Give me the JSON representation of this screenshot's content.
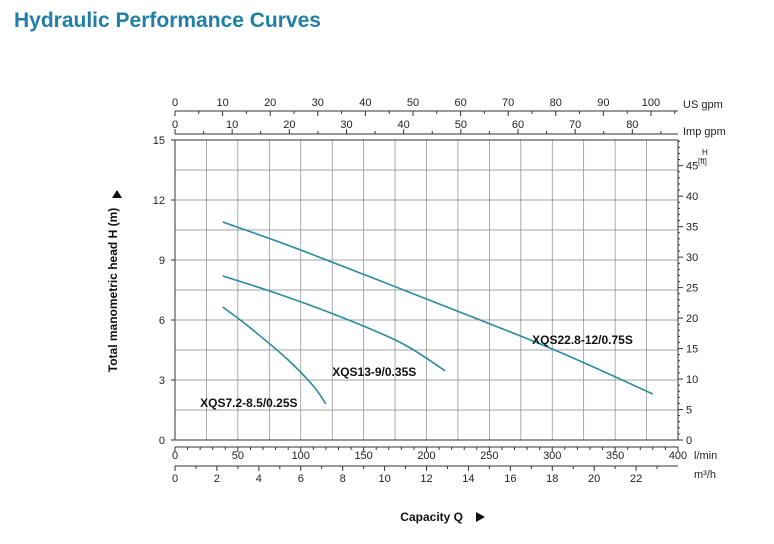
{
  "page": {
    "title": "Hydraulic Performance Curves"
  },
  "chart_data": {
    "type": "line",
    "title": "Hydraulic Performance Curves",
    "xlabel": "Capacity Q",
    "ylabel": "Total manometric head H (m)",
    "xlim": [
      0,
      400
    ],
    "ylim": [
      0,
      15
    ],
    "x_unit": "l/min",
    "grid": true,
    "x_ticks": [
      0,
      50,
      100,
      150,
      200,
      250,
      300,
      350,
      400
    ],
    "y_ticks": [
      0,
      3,
      6,
      9,
      12,
      15
    ],
    "secondary_axes": {
      "us_gpm": {
        "label": "US gpm",
        "ticks": [
          0,
          10,
          20,
          30,
          40,
          50,
          60,
          70,
          80,
          90,
          100
        ],
        "factor_lmin": 3.785
      },
      "imp_gpm": {
        "label": "Imp gpm",
        "ticks": [
          0,
          10,
          20,
          30,
          40,
          50,
          60,
          70,
          80
        ],
        "factor_lmin": 4.546
      },
      "m3h": {
        "label": "m³/h",
        "ticks": [
          0,
          2,
          4,
          6,
          8,
          10,
          12,
          14,
          16,
          18,
          20,
          22
        ],
        "factor_lmin": 16.667
      },
      "head_ft": {
        "label": "H [ft]",
        "ticks": [
          0,
          5,
          10,
          15,
          20,
          25,
          30,
          35,
          40,
          45
        ],
        "factor_m": 0.3048
      }
    },
    "series": [
      {
        "name": "XQS22.8-12/0.75S",
        "x": [
          38,
          100,
          200,
          300,
          380
        ],
        "y": [
          10.9,
          9.5,
          7.05,
          4.55,
          2.3
        ],
        "label_at": [
          284,
          4.8
        ]
      },
      {
        "name": "XQS13-9/0.35S",
        "x": [
          38,
          80,
          130,
          180,
          215
        ],
        "y": [
          8.2,
          7.35,
          6.2,
          4.85,
          3.45
        ],
        "label_at": [
          125,
          3.2
        ]
      },
      {
        "name": "XQS7.2-8.5/0.25S",
        "x": [
          38,
          60,
          90,
          110,
          120
        ],
        "y": [
          6.65,
          5.6,
          4.0,
          2.7,
          1.8
        ],
        "label_at": [
          20,
          1.65
        ]
      }
    ],
    "line_color": "#2a8aa0"
  }
}
